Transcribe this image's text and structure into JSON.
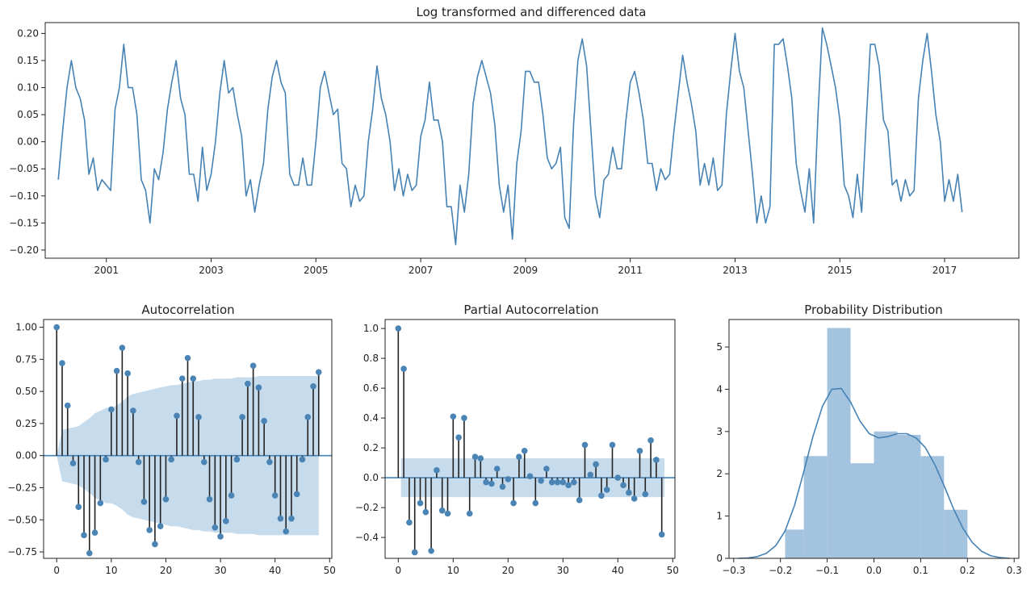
{
  "colors": {
    "line": "#4682b4",
    "stem": "#222222",
    "marker": "#4a84b4",
    "conf_band": "#aecce4",
    "hist": "#9fc0dc",
    "kde": "#4682b4",
    "axis": "#222222"
  },
  "chart_data": [
    {
      "type": "line",
      "title": "Log transformed and differenced data",
      "xlabel": "",
      "ylabel": "",
      "xlim": [
        "1999-11",
        "2018-06"
      ],
      "ylim": [
        -0.215,
        0.22
      ],
      "xticks": [
        "2001",
        "2003",
        "2005",
        "2007",
        "2009",
        "2011",
        "2013",
        "2015",
        "2017"
      ],
      "yticks": [
        "0.20",
        "0.15",
        "0.10",
        "0.05",
        "0.00",
        "−0.05",
        "−0.10",
        "−0.15",
        "−0.20"
      ],
      "x_start": "2000-02",
      "x_frequency": "monthly",
      "y": [
        -0.07,
        0.02,
        0.1,
        0.15,
        0.1,
        0.08,
        0.04,
        -0.06,
        -0.03,
        -0.09,
        -0.07,
        -0.08,
        -0.09,
        0.06,
        0.1,
        0.18,
        0.1,
        0.1,
        0.05,
        -0.07,
        -0.09,
        -0.15,
        -0.05,
        -0.07,
        -0.02,
        0.06,
        0.11,
        0.15,
        0.08,
        0.05,
        -0.06,
        -0.06,
        -0.11,
        -0.01,
        -0.09,
        -0.06,
        0.0,
        0.09,
        0.15,
        0.09,
        0.1,
        0.05,
        0.01,
        -0.1,
        -0.07,
        -0.13,
        -0.08,
        -0.04,
        0.06,
        0.12,
        0.15,
        0.11,
        0.09,
        -0.06,
        -0.08,
        -0.08,
        -0.03,
        -0.08,
        -0.08,
        0.0,
        0.1,
        0.13,
        0.09,
        0.05,
        0.06,
        -0.04,
        -0.05,
        -0.12,
        -0.08,
        -0.11,
        -0.1,
        0.0,
        0.06,
        0.14,
        0.08,
        0.05,
        0.0,
        -0.09,
        -0.05,
        -0.1,
        -0.06,
        -0.09,
        -0.08,
        0.01,
        0.04,
        0.11,
        0.04,
        0.04,
        0.0,
        -0.12,
        -0.12,
        -0.19,
        -0.08,
        -0.13,
        -0.06,
        0.07,
        0.12,
        0.15,
        0.12,
        0.09,
        0.03,
        -0.08,
        -0.13,
        -0.08,
        -0.18,
        -0.04,
        0.02,
        0.13,
        0.13,
        0.11,
        0.11,
        0.05,
        -0.03,
        -0.05,
        -0.04,
        -0.01,
        -0.14,
        -0.16,
        0.03,
        0.15,
        0.19,
        0.14,
        0.02,
        -0.1,
        -0.14,
        -0.07,
        -0.06,
        -0.01,
        -0.05,
        -0.05,
        0.04,
        0.11,
        0.13,
        0.09,
        0.04,
        -0.04,
        -0.04,
        -0.09,
        -0.05,
        -0.07,
        -0.06,
        0.02,
        0.09,
        0.16,
        0.11,
        0.07,
        0.02,
        -0.08,
        -0.04,
        -0.08,
        -0.03,
        -0.09,
        -0.08,
        0.05,
        0.13,
        0.2,
        0.13,
        0.1,
        0.02,
        -0.06,
        -0.15,
        -0.1,
        -0.15,
        -0.12,
        0.18,
        0.18,
        0.19,
        0.14,
        0.08,
        -0.04,
        -0.09,
        -0.13,
        -0.05,
        -0.15,
        0.05,
        0.21,
        0.18,
        0.14,
        0.1,
        0.04,
        -0.08,
        -0.1,
        -0.14,
        -0.06,
        -0.13,
        0.03,
        0.18,
        0.18,
        0.14,
        0.04,
        0.02,
        -0.08,
        -0.07,
        -0.11,
        -0.07,
        -0.1,
        -0.09,
        0.08,
        0.15,
        0.2,
        0.13,
        0.05,
        0.0,
        -0.11,
        -0.07,
        -0.11,
        -0.06,
        -0.13
      ]
    },
    {
      "type": "stem",
      "title": "Autocorrelation",
      "xlim": [
        -2.4,
        50.4
      ],
      "ylim": [
        -0.8,
        1.06
      ],
      "xticks": [
        "0",
        "10",
        "20",
        "30",
        "40",
        "50"
      ],
      "yticks": [
        "1.00",
        "0.75",
        "0.50",
        "0.25",
        "0.00",
        "−0.25",
        "−0.50",
        "−0.75"
      ],
      "x": [
        0,
        1,
        2,
        3,
        4,
        5,
        6,
        7,
        8,
        9,
        10,
        11,
        12,
        13,
        14,
        15,
        16,
        17,
        18,
        19,
        20,
        21,
        22,
        23,
        24,
        25,
        26,
        27,
        28,
        29,
        30,
        31,
        32,
        33,
        34,
        35,
        36,
        37,
        38,
        39,
        40,
        41,
        42,
        43,
        44,
        45,
        46,
        47,
        48
      ],
      "values": [
        1.0,
        0.72,
        0.39,
        -0.06,
        -0.4,
        -0.62,
        -0.76,
        -0.6,
        -0.37,
        -0.03,
        0.36,
        0.66,
        0.84,
        0.64,
        0.35,
        -0.05,
        -0.36,
        -0.58,
        -0.69,
        -0.55,
        -0.34,
        -0.03,
        0.31,
        0.6,
        0.76,
        0.6,
        0.3,
        -0.05,
        -0.34,
        -0.56,
        -0.63,
        -0.51,
        -0.31,
        -0.03,
        0.3,
        0.56,
        0.7,
        0.53,
        0.27,
        -0.05,
        -0.31,
        -0.49,
        -0.59,
        -0.49,
        -0.3,
        -0.03,
        0.3,
        0.54,
        0.65
      ],
      "confidence_band": [
        0.0,
        0.2,
        0.21,
        0.22,
        0.23,
        0.26,
        0.29,
        0.33,
        0.35,
        0.37,
        0.37,
        0.39,
        0.42,
        0.46,
        0.48,
        0.49,
        0.5,
        0.51,
        0.52,
        0.53,
        0.54,
        0.55,
        0.55,
        0.56,
        0.57,
        0.58,
        0.58,
        0.59,
        0.59,
        0.6,
        0.6,
        0.6,
        0.6,
        0.61,
        0.61,
        0.61,
        0.61,
        0.62,
        0.62,
        0.62,
        0.62,
        0.62,
        0.62,
        0.62,
        0.62,
        0.62,
        0.62,
        0.62,
        0.62
      ]
    },
    {
      "type": "stem",
      "title": "Partial Autocorrelation",
      "xlim": [
        -2.4,
        50.4
      ],
      "ylim": [
        -0.54,
        1.06
      ],
      "xticks": [
        "0",
        "10",
        "20",
        "30",
        "40",
        "50"
      ],
      "yticks": [
        "1.0",
        "0.8",
        "0.6",
        "0.4",
        "0.2",
        "0.0",
        "−0.2",
        "−0.4"
      ],
      "x": [
        0,
        1,
        2,
        3,
        4,
        5,
        6,
        7,
        8,
        9,
        10,
        11,
        12,
        13,
        14,
        15,
        16,
        17,
        18,
        19,
        20,
        21,
        22,
        23,
        24,
        25,
        26,
        27,
        28,
        29,
        30,
        31,
        32,
        33,
        34,
        35,
        36,
        37,
        38,
        39,
        40,
        41,
        42,
        43,
        44,
        45,
        46,
        47,
        48
      ],
      "values": [
        1.0,
        0.73,
        -0.3,
        -0.5,
        -0.17,
        -0.23,
        -0.49,
        0.05,
        -0.22,
        -0.24,
        0.41,
        0.27,
        0.4,
        -0.24,
        0.14,
        0.13,
        -0.03,
        -0.04,
        0.06,
        -0.06,
        -0.01,
        -0.17,
        0.14,
        0.18,
        0.01,
        -0.17,
        -0.02,
        0.06,
        -0.03,
        -0.03,
        -0.03,
        -0.05,
        -0.03,
        -0.15,
        0.22,
        0.02,
        0.09,
        -0.12,
        -0.08,
        0.22,
        0.0,
        -0.05,
        -0.1,
        -0.14,
        0.18,
        -0.11,
        0.25,
        0.12,
        -0.38
      ],
      "confidence_band": 0.13
    },
    {
      "type": "histogram+kde",
      "title": "Probability Distribution",
      "xlim": [
        -0.31,
        0.31
      ],
      "ylim": [
        0,
        5.65
      ],
      "xticks": [
        "−0.3",
        "−0.2",
        "−0.1",
        "0.0",
        "0.1",
        "0.2",
        "0.3"
      ],
      "yticks": [
        "0",
        "1",
        "2",
        "3",
        "4",
        "5"
      ],
      "bins": [
        {
          "start": -0.19,
          "end": -0.15,
          "height": 0.68
        },
        {
          "start": -0.15,
          "end": -0.1,
          "height": 2.42
        },
        {
          "start": -0.1,
          "end": -0.05,
          "height": 5.45
        },
        {
          "start": -0.05,
          "end": 0.0,
          "height": 2.25
        },
        {
          "start": 0.0,
          "end": 0.05,
          "height": 3.0
        },
        {
          "start": 0.05,
          "end": 0.1,
          "height": 2.92
        },
        {
          "start": 0.1,
          "end": 0.15,
          "height": 2.42
        },
        {
          "start": 0.15,
          "end": 0.2,
          "height": 1.15
        }
      ],
      "kde_x": [
        -0.29,
        -0.27,
        -0.25,
        -0.23,
        -0.21,
        -0.19,
        -0.17,
        -0.15,
        -0.13,
        -0.11,
        -0.09,
        -0.07,
        -0.05,
        -0.03,
        -0.01,
        0.01,
        0.03,
        0.05,
        0.07,
        0.09,
        0.11,
        0.13,
        0.15,
        0.17,
        0.19,
        0.21,
        0.23,
        0.25,
        0.27,
        0.29
      ],
      "kde_y": [
        0.0,
        0.01,
        0.04,
        0.12,
        0.3,
        0.65,
        1.25,
        2.05,
        2.9,
        3.6,
        4.0,
        4.02,
        3.7,
        3.25,
        2.95,
        2.85,
        2.88,
        2.95,
        2.95,
        2.85,
        2.62,
        2.22,
        1.72,
        1.18,
        0.72,
        0.38,
        0.17,
        0.06,
        0.02,
        0.0
      ]
    }
  ]
}
